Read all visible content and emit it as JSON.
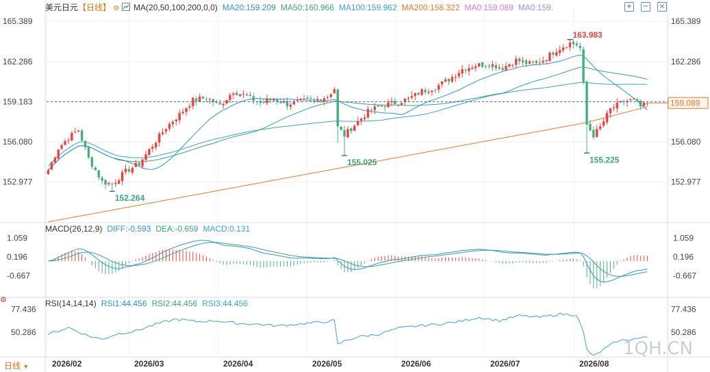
{
  "instrument": "美元日元",
  "period_label": "【日线】",
  "period_bottom": "日线",
  "price_legend": [
    {
      "text": "MA(20,50,100,200,0,0)",
      "color": "#333333"
    },
    {
      "text": "MA20:159.209",
      "color": "#2f8fd8"
    },
    {
      "text": "MA50:160.966",
      "color": "#3aa37a"
    },
    {
      "text": "MA100:159.962",
      "color": "#3aa0d8"
    },
    {
      "text": "MA200:158.322",
      "color": "#e8782a"
    },
    {
      "text": "MA0:159.089",
      "color": "#d77ac8"
    },
    {
      "text": "MA0:159.",
      "color": "#9b8fd8"
    }
  ],
  "macd_legend": [
    {
      "text": "MACD(26,12,9)",
      "color": "#333333"
    },
    {
      "text": "DIFF:-0.593",
      "color": "#2f8fd8"
    },
    {
      "text": "DEA:-0.659",
      "color": "#3aa37a"
    },
    {
      "text": "MACD:0.131",
      "color": "#3aa0d8"
    }
  ],
  "rsi_legend": [
    {
      "text": "RSI(14,14,14)",
      "color": "#333333"
    },
    {
      "text": "RSI1:44.456",
      "color": "#2f8fd8"
    },
    {
      "text": "RSI2:44.456",
      "color": "#3aa37a"
    },
    {
      "text": "RSI3:44.456",
      "color": "#3aa0d8"
    }
  ],
  "watermark": "1QH.CN",
  "icons": [
    "plus-square-icon",
    "minus-square-icon",
    "close-square-icon",
    "settings-icon",
    "ma-toggle-icon"
  ],
  "chart_data": {
    "type": "candlestick",
    "title": "美元日元【日线】",
    "x_ticks": [
      "2026/02",
      "2026/03",
      "2026/04",
      "2026/05",
      "2026/06",
      "2026/07",
      "2026/08"
    ],
    "price_axis": {
      "ticks": [
        "165.389",
        "162.286",
        "159.183",
        "156.080",
        "152.977"
      ],
      "tick_values": [
        165.389,
        162.286,
        159.183,
        156.08,
        152.977
      ],
      "range": [
        150.0,
        166.3
      ]
    },
    "current_price": "159.089",
    "current_value": 159.089,
    "reference_line_value": 159.183,
    "annotations": [
      {
        "text": "163.983",
        "value": 163.983,
        "kind": "high",
        "color": "#e8453c"
      },
      {
        "text": "152.264",
        "value": 152.264,
        "kind": "low",
        "color": "#3aa37a"
      },
      {
        "text": "155.025",
        "value": 155.025,
        "kind": "low",
        "color": "#3aa37a"
      },
      {
        "text": "155.225",
        "value": 155.225,
        "kind": "low",
        "color": "#3aa37a"
      }
    ],
    "up_color": "#e8453c",
    "down_color": "#46b07c",
    "macd_axis": {
      "ticks": [
        "1.059",
        "0.196",
        "-0.667"
      ],
      "tick_values": [
        1.059,
        0.196,
        -0.667
      ],
      "range": [
        -1.6,
        1.35
      ]
    },
    "rsi_axis": {
      "ticks": [
        "77.436",
        "50.286"
      ],
      "tick_values": [
        77.436,
        50.286
      ],
      "range": [
        22,
        82
      ]
    },
    "close_anchors": [
      [
        0,
        153.9
      ],
      [
        3,
        155.6
      ],
      [
        6,
        156.4
      ],
      [
        9,
        157.0
      ],
      [
        12,
        154.8
      ],
      [
        16,
        153.0
      ],
      [
        19,
        152.8
      ],
      [
        23,
        153.8
      ],
      [
        27,
        154.4
      ],
      [
        31,
        155.8
      ],
      [
        35,
        157.2
      ],
      [
        39,
        158.2
      ],
      [
        43,
        159.3
      ],
      [
        47,
        159.5
      ],
      [
        51,
        158.9
      ],
      [
        55,
        160.0
      ],
      [
        59,
        159.6
      ],
      [
        63,
        159.1
      ],
      [
        67,
        159.4
      ],
      [
        71,
        159.0
      ],
      [
        75,
        159.2
      ],
      [
        79,
        159.3
      ],
      [
        83,
        159.6
      ],
      [
        85,
        160.2
      ],
      [
        86,
        157.2
      ],
      [
        88,
        156.6
      ],
      [
        91,
        157.4
      ],
      [
        95,
        158.4
      ],
      [
        99,
        158.9
      ],
      [
        103,
        159.1
      ],
      [
        107,
        159.4
      ],
      [
        111,
        160.0
      ],
      [
        115,
        160.3
      ],
      [
        119,
        160.9
      ],
      [
        123,
        161.7
      ],
      [
        127,
        162.0
      ],
      [
        131,
        162.1
      ],
      [
        135,
        161.8
      ],
      [
        139,
        162.4
      ],
      [
        143,
        162.1
      ],
      [
        147,
        162.4
      ],
      [
        151,
        163.2
      ],
      [
        155,
        163.7
      ],
      [
        157,
        163.6
      ],
      [
        158,
        163.3
      ],
      [
        159,
        160.5
      ],
      [
        160,
        157.4
      ],
      [
        162,
        156.6
      ],
      [
        164,
        157.2
      ],
      [
        167,
        158.6
      ],
      [
        171,
        159.2
      ],
      [
        174,
        159.3
      ],
      [
        176,
        158.8
      ],
      [
        178,
        159.0
      ]
    ],
    "rsi_anchors": [
      [
        0,
        48
      ],
      [
        6,
        56
      ],
      [
        12,
        46
      ],
      [
        16,
        42
      ],
      [
        20,
        48
      ],
      [
        26,
        52
      ],
      [
        32,
        60
      ],
      [
        38,
        66
      ],
      [
        44,
        63
      ],
      [
        50,
        64
      ],
      [
        56,
        61
      ],
      [
        62,
        60
      ],
      [
        68,
        58
      ],
      [
        74,
        60
      ],
      [
        80,
        62
      ],
      [
        85,
        64
      ],
      [
        86,
        36
      ],
      [
        88,
        40
      ],
      [
        92,
        45
      ],
      [
        98,
        48
      ],
      [
        104,
        55
      ],
      [
        110,
        58
      ],
      [
        116,
        60
      ],
      [
        122,
        63
      ],
      [
        128,
        68
      ],
      [
        134,
        64
      ],
      [
        140,
        70
      ],
      [
        146,
        68
      ],
      [
        152,
        72
      ],
      [
        157,
        71
      ],
      [
        159,
        50
      ],
      [
        160,
        30
      ],
      [
        162,
        22
      ],
      [
        165,
        30
      ],
      [
        169,
        40
      ],
      [
        173,
        42
      ],
      [
        178,
        44.456
      ]
    ],
    "ma": [
      {
        "name": "MA20",
        "color": "#2f8fd8",
        "value": 159.209
      },
      {
        "name": "MA50",
        "color": "#3aa37a",
        "value": 160.966
      },
      {
        "name": "MA100",
        "color": "#3aa0d8",
        "value": 159.962
      },
      {
        "name": "MA200",
        "color": "#e8782a",
        "value": 158.322
      }
    ],
    "macd": {
      "diff": -0.593,
      "dea": -0.659,
      "macd": 0.131
    },
    "rsi": {
      "rsi1": 44.456,
      "rsi2": 44.456,
      "rsi3": 44.456
    }
  }
}
